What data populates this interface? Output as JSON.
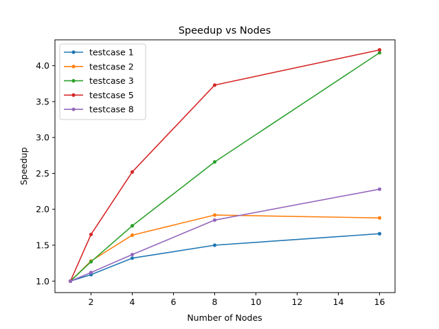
{
  "chart_data": {
    "type": "line",
    "title": "Speedup vs Nodes",
    "xlabel": "Number of Nodes",
    "ylabel": "Speedup",
    "xlim": [
      0.25,
      16.75
    ],
    "ylim": [
      0.84,
      4.36
    ],
    "xticks": [
      2,
      4,
      6,
      8,
      10,
      12,
      14,
      16
    ],
    "xtick_labels": [
      "2",
      "4",
      "6",
      "8",
      "10",
      "12",
      "14",
      "16"
    ],
    "yticks": [
      1.0,
      1.5,
      2.0,
      2.5,
      3.0,
      3.5,
      4.0
    ],
    "ytick_labels": [
      "1.0",
      "1.5",
      "2.0",
      "2.5",
      "3.0",
      "3.5",
      "4.0"
    ],
    "legend_position": "top-left",
    "x": [
      1,
      2,
      4,
      8,
      16
    ],
    "series": [
      {
        "name": "testcase 1",
        "color": "#1f77b4",
        "values": [
          1.0,
          1.09,
          1.32,
          1.5,
          1.66
        ]
      },
      {
        "name": "testcase 2",
        "color": "#ff7f0e",
        "values": [
          1.0,
          1.28,
          1.64,
          1.92,
          1.88
        ]
      },
      {
        "name": "testcase 3",
        "color": "#2ca02c",
        "values": [
          1.0,
          1.27,
          1.77,
          2.66,
          4.18
        ]
      },
      {
        "name": "testcase 5",
        "color": "#d62728",
        "values": [
          1.0,
          1.65,
          2.52,
          3.73,
          4.22
        ]
      },
      {
        "name": "testcase 8",
        "color": "#9467bd",
        "values": [
          1.0,
          1.12,
          1.37,
          1.85,
          2.28
        ]
      }
    ]
  }
}
